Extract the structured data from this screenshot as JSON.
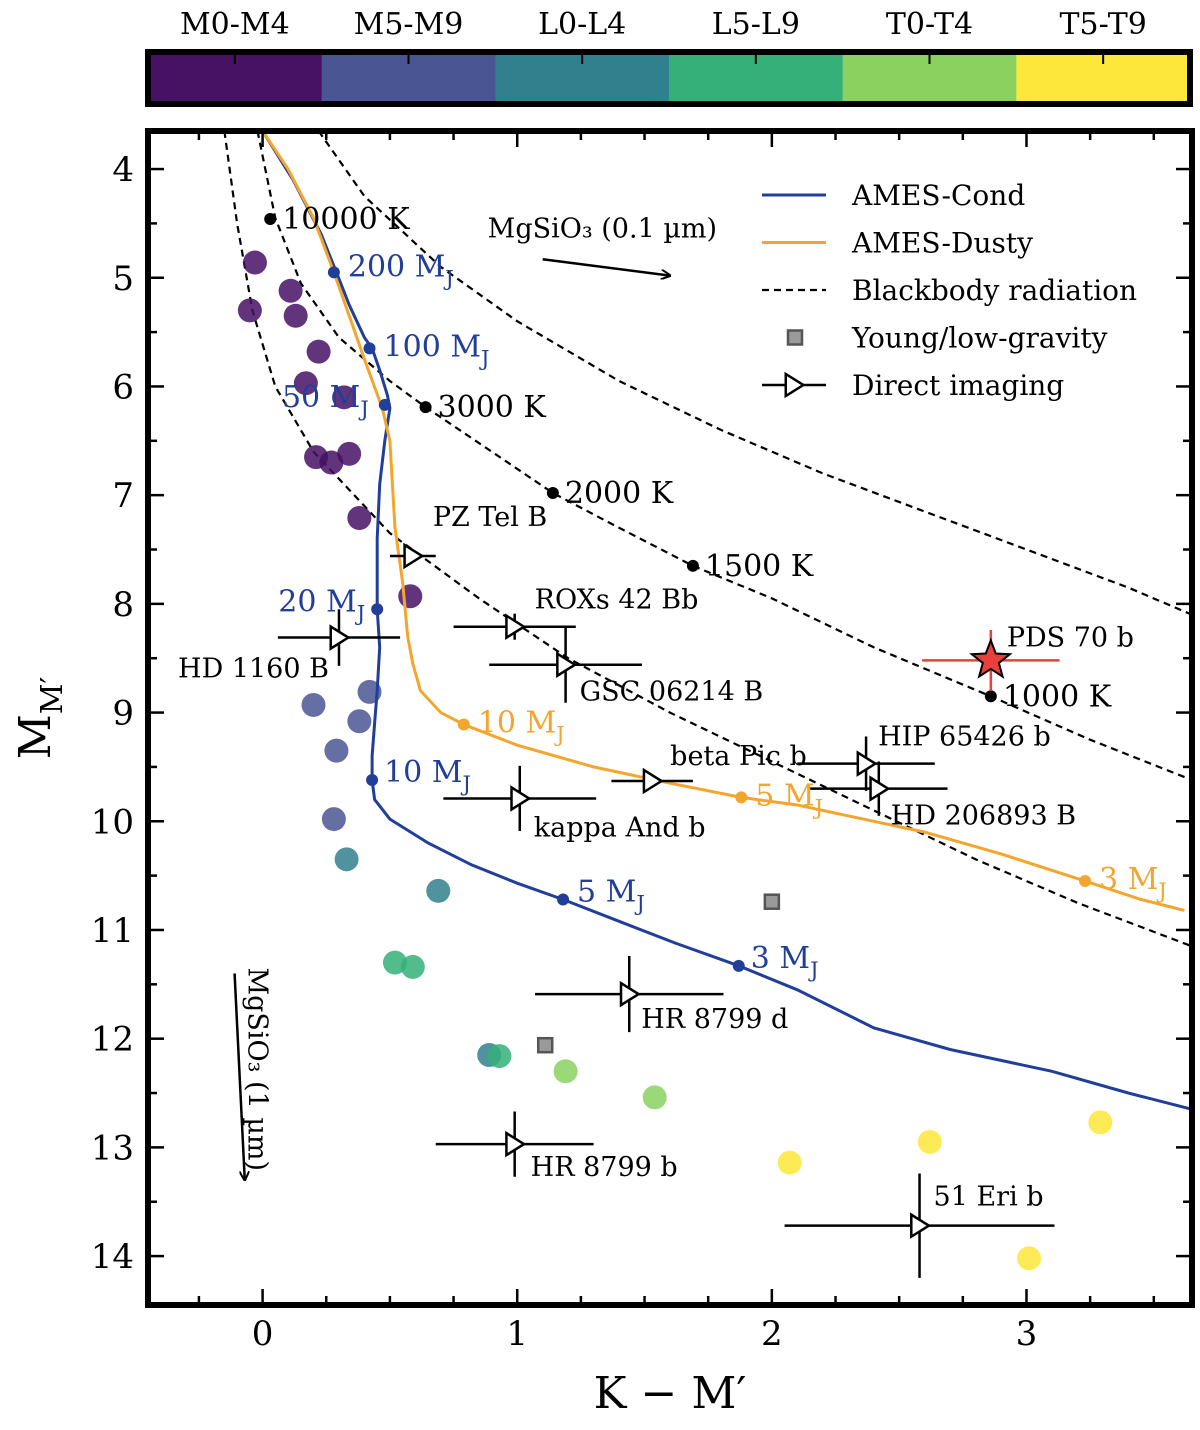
{
  "chart_data": {
    "type": "scatter",
    "xlabel": "K − M′",
    "ylabel_main": "M",
    "ylabel_sub": "M′",
    "xlim": [
      -0.45,
      3.65
    ],
    "ylim": [
      14.45,
      3.65
    ],
    "x_ticks": [
      "0",
      "1",
      "2",
      "3"
    ],
    "y_ticks": [
      "4",
      "5",
      "6",
      "7",
      "8",
      "9",
      "10",
      "11",
      "12",
      "13",
      "14"
    ],
    "colorbar": {
      "categories": [
        "M0-M4",
        "M5-M9",
        "L0-L4",
        "L5-L9",
        "T0-T4",
        "T5-T9"
      ],
      "colors": [
        "#471164",
        "#4a5694",
        "#31808e",
        "#35b079",
        "#8ad15f",
        "#fce73a"
      ]
    },
    "legend": [
      {
        "label": "AMES-Cond",
        "kind": "line",
        "color": "#213f99"
      },
      {
        "label": "AMES-Dusty",
        "kind": "line",
        "color": "#f4a52e"
      },
      {
        "label": "Blackbody radiation",
        "kind": "dashed",
        "color": "#000000"
      },
      {
        "label": "Young/low-gravity",
        "kind": "square",
        "color": "#8c8c8c"
      },
      {
        "label": "Direct imaging",
        "kind": "triangle",
        "color": "#000000"
      }
    ],
    "field_objects": [
      {
        "x": -0.03,
        "y": 4.86,
        "cls": 0
      },
      {
        "x": 0.11,
        "y": 5.12,
        "cls": 0
      },
      {
        "x": -0.05,
        "y": 5.3,
        "cls": 0
      },
      {
        "x": 0.13,
        "y": 5.35,
        "cls": 0
      },
      {
        "x": 0.22,
        "y": 5.68,
        "cls": 0
      },
      {
        "x": 0.17,
        "y": 5.97,
        "cls": 0
      },
      {
        "x": 0.32,
        "y": 6.1,
        "cls": 0
      },
      {
        "x": 0.21,
        "y": 6.65,
        "cls": 0
      },
      {
        "x": 0.27,
        "y": 6.7,
        "cls": 0
      },
      {
        "x": 0.34,
        "y": 6.62,
        "cls": 0
      },
      {
        "x": 0.38,
        "y": 7.21,
        "cls": 0
      },
      {
        "x": 0.58,
        "y": 7.93,
        "cls": 0
      },
      {
        "x": 0.2,
        "y": 8.93,
        "cls": 1
      },
      {
        "x": 0.42,
        "y": 8.81,
        "cls": 1
      },
      {
        "x": 0.38,
        "y": 9.08,
        "cls": 1
      },
      {
        "x": 0.29,
        "y": 9.35,
        "cls": 1
      },
      {
        "x": 0.28,
        "y": 9.98,
        "cls": 1
      },
      {
        "x": 0.33,
        "y": 10.35,
        "cls": 2
      },
      {
        "x": 0.69,
        "y": 10.64,
        "cls": 2
      },
      {
        "x": 0.52,
        "y": 11.3,
        "cls": 3
      },
      {
        "x": 0.59,
        "y": 11.34,
        "cls": 3
      },
      {
        "x": 0.89,
        "y": 12.15,
        "cls": 2
      },
      {
        "x": 0.93,
        "y": 12.16,
        "cls": 3
      },
      {
        "x": 1.19,
        "y": 12.3,
        "cls": 4
      },
      {
        "x": 1.54,
        "y": 12.54,
        "cls": 4
      },
      {
        "x": 2.07,
        "y": 13.14,
        "cls": 5
      },
      {
        "x": 2.62,
        "y": 12.95,
        "cls": 5
      },
      {
        "x": 3.29,
        "y": 12.77,
        "cls": 5
      },
      {
        "x": 3.01,
        "y": 14.02,
        "cls": 5
      }
    ],
    "young_low_gravity": [
      {
        "x": 1.11,
        "y": 12.06
      },
      {
        "x": 2.0,
        "y": 10.74
      }
    ],
    "direct_imaging": [
      {
        "name": "PZ Tel B",
        "x": 0.59,
        "y": 7.56,
        "xerr": 0.09,
        "yerr": 0.0
      },
      {
        "name": "HD 1160 B",
        "x": 0.3,
        "y": 8.31,
        "xerr": 0.24,
        "yerr": 0.26
      },
      {
        "name": "ROXs 42 Bb",
        "x": 0.99,
        "y": 8.21,
        "xerr": 0.24,
        "yerr": 0.12
      },
      {
        "name": "GSC 06214 B",
        "x": 1.19,
        "y": 8.56,
        "xerr": 0.3,
        "yerr": 0.35
      },
      {
        "name": "kappa And b",
        "x": 1.01,
        "y": 9.79,
        "xerr": 0.3,
        "yerr": 0.3
      },
      {
        "name": "beta Pic b",
        "x": 1.53,
        "y": 9.63,
        "xerr": 0.16,
        "yerr": 0.0
      },
      {
        "name": "HIP 65426 b",
        "x": 2.37,
        "y": 9.47,
        "xerr": 0.27,
        "yerr": 0.25
      },
      {
        "name": "HD 206893 B",
        "x": 2.42,
        "y": 9.7,
        "xerr": 0.27,
        "yerr": 0.25
      },
      {
        "name": "HR 8799 d",
        "x": 1.44,
        "y": 11.59,
        "xerr": 0.37,
        "yerr": 0.35
      },
      {
        "name": "HR 8799 b",
        "x": 0.99,
        "y": 12.97,
        "xerr": 0.31,
        "yerr": 0.3
      },
      {
        "name": "51 Eri b",
        "x": 2.58,
        "y": 13.72,
        "xerr": 0.53,
        "yerr": 0.48
      }
    ],
    "pds70b": {
      "name": "PDS 70 b",
      "x": 2.86,
      "y": 8.52,
      "xerr": 0.27,
      "yerr": 0.28,
      "color": "#e8413c"
    },
    "ames_cond": {
      "color": "#213f99",
      "x": [
        0.0,
        0.12,
        0.23,
        0.29,
        0.34,
        0.4,
        0.43,
        0.46,
        0.49,
        0.5,
        0.48,
        0.46,
        0.45,
        0.45,
        0.46,
        0.45,
        0.44,
        0.43,
        0.43,
        0.44,
        0.5,
        0.65,
        0.82,
        1.0,
        1.18,
        1.4,
        1.62,
        1.87,
        2.1,
        2.4,
        2.7,
        3.1,
        3.4,
        3.65
      ],
      "y": [
        3.65,
        4.1,
        4.6,
        4.95,
        5.25,
        5.55,
        5.65,
        5.85,
        6.08,
        6.2,
        6.5,
        6.9,
        7.4,
        8.05,
        8.4,
        8.8,
        9.1,
        9.4,
        9.62,
        9.8,
        9.98,
        10.2,
        10.4,
        10.57,
        10.72,
        10.92,
        11.12,
        11.33,
        11.55,
        11.9,
        12.1,
        12.3,
        12.5,
        12.65
      ]
    },
    "ames_dusty": {
      "color": "#f4a52e",
      "x": [
        0.0,
        0.1,
        0.2,
        0.28,
        0.34,
        0.4,
        0.47,
        0.5,
        0.51,
        0.52,
        0.55,
        0.57,
        0.59,
        0.62,
        0.7,
        0.79,
        1.0,
        1.3,
        1.6,
        1.88,
        2.1,
        2.4,
        2.6,
        2.9,
        3.23,
        3.45,
        3.62
      ],
      "y": [
        3.65,
        4.0,
        4.45,
        4.95,
        5.35,
        5.75,
        6.2,
        6.5,
        6.9,
        7.3,
        7.8,
        8.3,
        8.55,
        8.8,
        9.0,
        9.11,
        9.3,
        9.5,
        9.65,
        9.78,
        9.85,
        10.0,
        10.1,
        10.3,
        10.55,
        10.72,
        10.82
      ]
    },
    "blackbody_curves": [
      {
        "x": [
          -0.15,
          -0.1,
          -0.04,
          0.05,
          0.2,
          0.5,
          0.85,
          1.2,
          1.6,
          2.0,
          2.4,
          2.8,
          3.2,
          3.65
        ],
        "y": [
          3.65,
          4.5,
          5.3,
          6.0,
          6.6,
          7.35,
          7.95,
          8.5,
          9.0,
          9.45,
          9.9,
          10.35,
          10.75,
          11.15
        ]
      },
      {
        "x": [
          -0.02,
          0.05,
          0.15,
          0.3,
          0.5,
          0.64,
          0.9,
          1.14,
          1.4,
          1.69,
          2.0,
          2.4,
          2.86,
          3.25,
          3.65
        ],
        "y": [
          3.65,
          4.45,
          5.05,
          5.55,
          5.95,
          6.19,
          6.6,
          6.98,
          7.3,
          7.65,
          7.95,
          8.4,
          8.85,
          9.25,
          9.62
        ]
      },
      {
        "x": [
          0.22,
          0.4,
          0.7,
          1.0,
          1.4,
          1.8,
          2.2,
          2.6,
          3.0,
          3.4,
          3.65
        ],
        "y": [
          3.65,
          4.25,
          4.9,
          5.4,
          5.95,
          6.4,
          6.8,
          7.15,
          7.5,
          7.85,
          8.1
        ]
      }
    ],
    "temperature_markers": [
      {
        "label": "10000 K",
        "x": 0.03,
        "y": 4.46
      },
      {
        "label": "3000 K",
        "x": 0.64,
        "y": 6.19
      },
      {
        "label": "2000 K",
        "x": 1.14,
        "y": 6.98
      },
      {
        "label": "1500 K",
        "x": 1.69,
        "y": 7.65
      },
      {
        "label": "1000 K",
        "x": 2.86,
        "y": 8.85
      }
    ],
    "cond_mass_markers": [
      {
        "label": "200 M",
        "sub": "J",
        "x": 0.28,
        "y": 4.95
      },
      {
        "label": "100 M",
        "sub": "J",
        "x": 0.42,
        "y": 5.65
      },
      {
        "label": "50 M",
        "sub": "J",
        "x": 0.48,
        "y": 6.17
      },
      {
        "label": "20 M",
        "sub": "J",
        "x": 0.45,
        "y": 8.05
      },
      {
        "label": "10 M",
        "sub": "J",
        "x": 0.43,
        "y": 9.62
      },
      {
        "label": "5 M",
        "sub": "J",
        "x": 1.18,
        "y": 10.72
      },
      {
        "label": "3 M",
        "sub": "J",
        "x": 1.87,
        "y": 11.33
      }
    ],
    "dusty_mass_markers": [
      {
        "label": "10 M",
        "sub": "J",
        "x": 0.79,
        "y": 9.11
      },
      {
        "label": "5 M",
        "sub": "J",
        "x": 1.88,
        "y": 9.78
      },
      {
        "label": "3 M",
        "sub": "J",
        "x": 3.23,
        "y": 10.55
      }
    ],
    "extinction_vectors": [
      {
        "label": "MgSiO₃ (0.1 µm)",
        "x0": 1.1,
        "y0": 4.83,
        "x1": 1.6,
        "y1": 4.98
      },
      {
        "label": "MgSiO₃ (1 µm)",
        "x0": -0.11,
        "y0": 11.4,
        "x1": -0.07,
        "y1": 13.3
      }
    ]
  }
}
